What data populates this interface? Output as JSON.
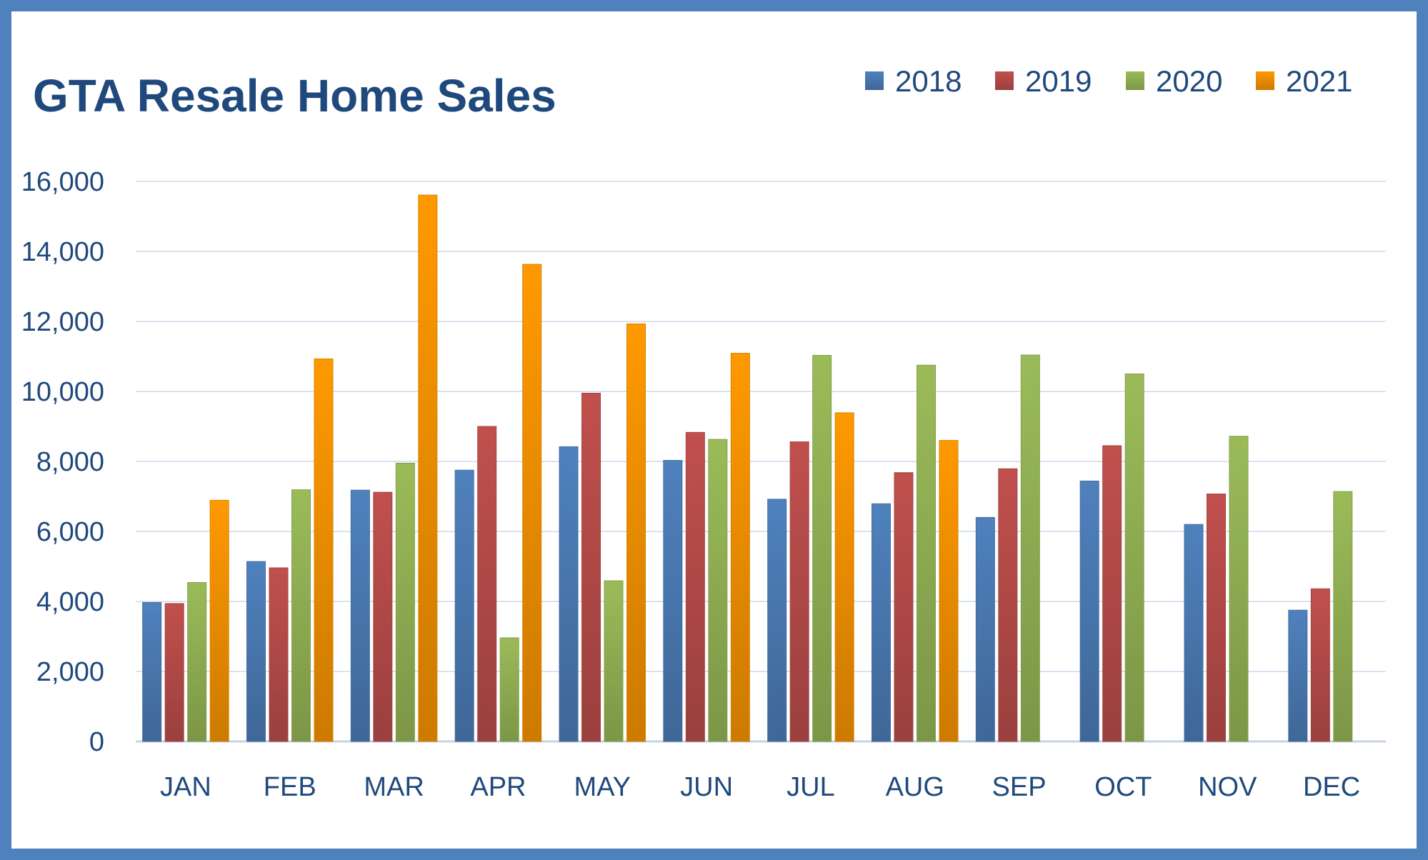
{
  "chart_data": {
    "type": "bar",
    "title": "GTA Resale Home Sales",
    "xlabel": "",
    "ylabel": "",
    "categories": [
      "JAN",
      "FEB",
      "MAR",
      "APR",
      "MAY",
      "JUN",
      "JUL",
      "AUG",
      "SEP",
      "OCT",
      "NOV",
      "DEC"
    ],
    "ylim": [
      0,
      16000
    ],
    "yticks": [
      0,
      2000,
      4000,
      6000,
      8000,
      10000,
      12000,
      14000,
      16000
    ],
    "ytick_labels": [
      "0",
      "2,000",
      "4,000",
      "6,000",
      "8,000",
      "10,000",
      "12,000",
      "14,000",
      "16,000"
    ],
    "grid": true,
    "legend_position": "top-right",
    "series": [
      {
        "name": "2018",
        "color": "#4f81bd",
        "values": [
          3970,
          5140,
          7180,
          7750,
          8420,
          8030,
          6920,
          6790,
          6400,
          7440,
          6200,
          3750
        ]
      },
      {
        "name": "2019",
        "color": "#c0504d",
        "values": [
          3940,
          4960,
          7120,
          9000,
          9950,
          8830,
          8560,
          7680,
          7790,
          8450,
          7070,
          4360
        ]
      },
      {
        "name": "2020",
        "color": "#9bbb59",
        "values": [
          4540,
          7190,
          7950,
          2960,
          4590,
          8630,
          11030,
          10750,
          11040,
          10500,
          8720,
          7140
        ]
      },
      {
        "name": "2021",
        "color": "#ff9900",
        "values": [
          6890,
          10930,
          15610,
          13630,
          11930,
          11090,
          9390,
          8600,
          null,
          null,
          null,
          null
        ]
      }
    ]
  }
}
